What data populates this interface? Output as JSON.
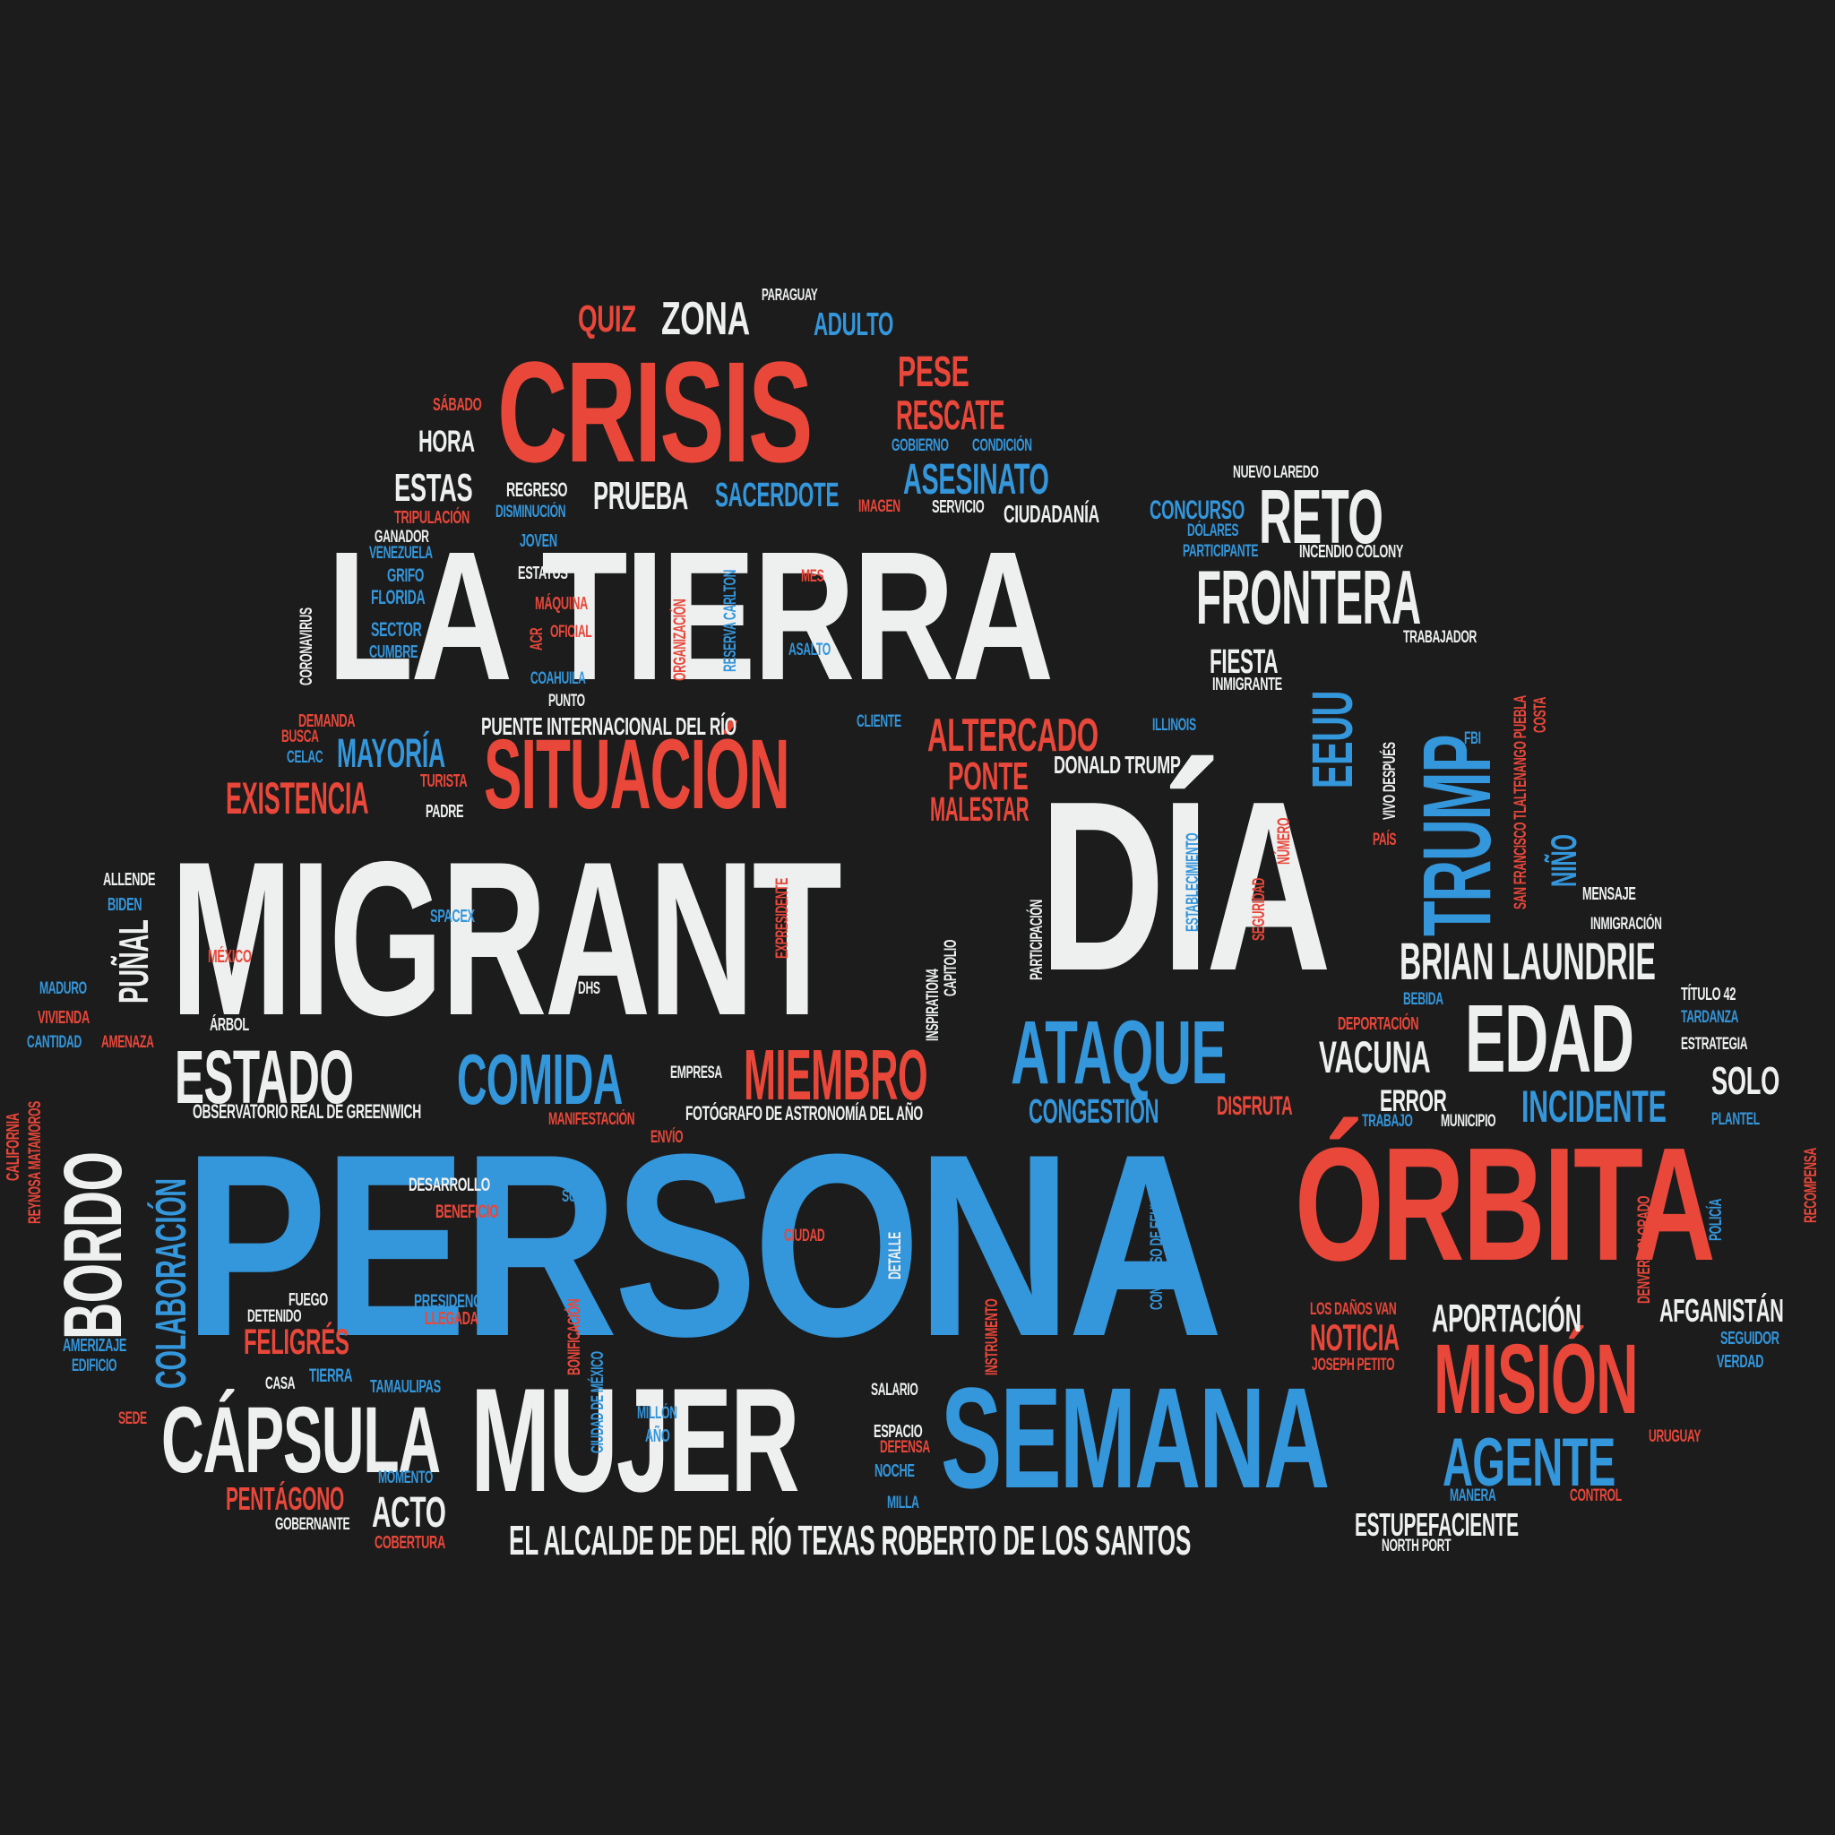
{
  "colors": {
    "background": "#1c1c1c",
    "red": "#e8473a",
    "blue": "#3496db",
    "white": "#eef0f0"
  },
  "words": {
    "persona": "PERSONA",
    "migrant": "MIGRANT",
    "la_tierra": "LA TIERRA",
    "dia": "DÍA",
    "orbita": "ÓRBITA",
    "crisis": "CRISIS",
    "situacion": "SITUACIÓN",
    "mujer": "MUJER",
    "semana": "SEMANA",
    "capsula": "CÁPSULA",
    "mision": "MISIÓN",
    "bordo": "BORDO",
    "trump": "TRUMP",
    "edad": "EDAD",
    "frontera": "FRONTERA",
    "reto": "RETO",
    "ataque": "ATAQUE",
    "estado": "ESTADO",
    "comida": "COMIDA",
    "miembro": "MIEMBRO",
    "agente": "AGENTE",
    "eeuu": "EEUU",
    "brian_laundrie": "BRIAN LAUNDRIE",
    "altercado": "ALTERCADO",
    "existencia": "EXISTENCIA",
    "asesinato": "ASESINATO",
    "incidente": "INCIDENTE",
    "colaboracion": "COLABORACIÓN",
    "zona": "ZONA",
    "quiz": "QUIZ",
    "pese": "PESE",
    "rescate": "RESCATE",
    "mayoria": "MAYORÍA",
    "ponte": "PONTE",
    "malestar": "MALESTAR",
    "punal": "PUÑAL",
    "acto": "ACTO",
    "vacuna": "VACUNA",
    "solo": "SOLO",
    "noticia": "NOTICIA",
    "aportacion": "APORTACIÓN",
    "feligres": "FELIGRÉS",
    "pentagono": "PENTÁGONO",
    "estupefaciente": "ESTUPEFACIENTE",
    "el_alcalde": "EL ALCALDE DE DEL RÍO TEXAS ROBERTO DE LOS SANTOS",
    "congestion": "CONGESTIÓN",
    "prueba": "PRUEBA",
    "sacerdote": "SACERDOTE",
    "estas": "ESTAS",
    "hora": "HORA",
    "fiesta": "FIESTA",
    "afganistan": "AFGANISTÁN",
    "error": "ERROR",
    "disfruta": "DISFRUTA",
    "nino": "NIÑO",
    "adulto": "ADULTO",
    "ciudadania": "CIUDADANÍA",
    "concurso": "CONCURSO",
    "puente": "PUENTE INTERNACIONAL DEL RÍO",
    "donald_trump": "DONALD TRUMP",
    "observatorio": "OBSERVATORIO REAL DE GREENWICH",
    "fotografo": "FOTÓGRAFO DE ASTRONOMÍA DEL AÑO",
    "incendio": "INCENDIO COLONY",
    "nuevo_laredo": "NUEVO LAREDO",
    "paraguay": "PARAGUAY",
    "sabado": "SÁBADO",
    "gobierno": "GOBIERNO",
    "condicion": "CONDICIÓN",
    "regreso": "REGRESO",
    "servicio": "SERVICIO",
    "imagen": "IMAGEN",
    "disminucion": "DISMINUCIÓN",
    "tripulacion": "TRIPULACIÓN",
    "dolares": "DÓLARES",
    "participante": "PARTICIPANTE",
    "ganador": "GANADOR",
    "venezuela": "VENEZUELA",
    "joven": "JOVEN",
    "grifo": "GRIFO",
    "estatus": "ESTATUS",
    "mes": "MES",
    "florida": "FLORIDA",
    "maquina": "MÁQUINA",
    "sector": "SECTOR",
    "oficial": "OFICIAL",
    "acr": "ACR",
    "cumbre": "CUMBRE",
    "asalto": "ASALTO",
    "trabajador": "TRABAJADOR",
    "inmigrante": "INMIGRANTE",
    "coahuila": "COAHUILA",
    "punto": "PUNTO",
    "demanda": "DEMANDA",
    "cliente": "CLIENTE",
    "busca": "BUSCA",
    "illinois": "ILLINOIS",
    "fbi": "FBI",
    "celac": "CELAC",
    "turista": "TURISTA",
    "padre": "PADRE",
    "allende": "ALLENDE",
    "biden": "BIDEN",
    "spacex": "SPACEX",
    "mexico": "MÉXICO",
    "maduro": "MADURO",
    "dhs": "DHS",
    "vivienda": "VIVIENDA",
    "arbol": "ÁRBOL",
    "cantidad": "CANTIDAD",
    "amenaza": "AMENAZA",
    "empresa": "EMPRESA",
    "pais": "PAÍS",
    "mensaje": "MENSAJE",
    "inmigracion": "INMIGRACIÓN",
    "titulo42": "TÍTULO 42",
    "bebida": "BEBIDA",
    "tardanza": "TARDANZA",
    "deportacion": "DEPORTACIÓN",
    "estrategia": "ESTRATEGIA",
    "trabajo": "TRABAJO",
    "municipio": "MUNICIPIO",
    "plantel": "PLANTEL",
    "manifestacion": "MANIFESTACIÓN",
    "envio": "ENVÍO",
    "desarrollo": "DESARROLLO",
    "sur": "SUR",
    "beneficio": "BENEFICIO",
    "ciudad": "CIUDAD",
    "fuego": "FUEGO",
    "detenido": "DETENIDO",
    "presidencia": "PRESIDENCIA",
    "llegada": "LLEGADA",
    "amerizaje": "AMERIZAJE",
    "edificio": "EDIFICIO",
    "casa": "CASA",
    "tierra": "TIERRA",
    "tamaulipas": "TAMAULIPAS",
    "salario": "SALARIO",
    "sede": "SEDE",
    "millon": "MILLÓN",
    "ano": "AÑO",
    "espacio": "ESPACIO",
    "defensa": "DEFENSA",
    "noche": "NOCHE",
    "momento": "MOMENTO",
    "milla": "MILLA",
    "gobernante": "GOBERNANTE",
    "cobertura": "COBERTURA",
    "los_danos": "LOS DAÑOS VAN",
    "joseph_petito": "JOSEPH PETITO",
    "seguidor": "SEGUIDOR",
    "verdad": "VERDAD",
    "uruguay": "URUGUAY",
    "manera": "MANERA",
    "control": "CONTROL",
    "north_port": "NORTH PORT",
    "coronavirus": "CORONAVIRUS",
    "organizacion": "ORGANIZACIÓN",
    "reserva_carlton": "RESERVA CARLTON",
    "vivo_despues": "VIVO DESPUÉS",
    "san_francisco": "SAN FRANCISCO TLALTENANGO PUEBLA",
    "costa": "COSTA",
    "expresidente": "EXPRESIDENTE",
    "establecimiento": "ESTABLECIMIENTO",
    "seguridad": "SEGURIDAD",
    "numero": "NÚMERO",
    "inspiration4": "INSPIRATION4",
    "capitolio": "CAPITOLIO",
    "participacion": "PARTICIPACIÓN",
    "california": "CALIFORNIA",
    "reynosa": "REYNOSA MATAMOROS",
    "detalle": "DETALLE",
    "congreso_eeuu": "CONGRESO DE EEUU",
    "bonificacion": "BONIFICACIÓN",
    "ciudad_mexico": "CIUDAD DE MÉXICO",
    "instrumento": "INSTRUMENTO",
    "denver": "DENVER COLORADO",
    "policia": "POLICÍA",
    "recompensa": "RECOMPENSA"
  }
}
